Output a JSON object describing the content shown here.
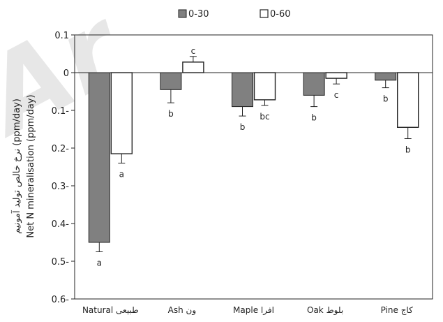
{
  "chart_data": {
    "type": "bar",
    "categories": [
      "Natural طبیعی",
      "Ash ون",
      "Maple افرا",
      "Oak بلوط",
      "Pine کاج"
    ],
    "series": [
      {
        "name": "0-30",
        "color": "#808080",
        "values": [
          -0.45,
          -0.045,
          -0.09,
          -0.06,
          -0.02
        ],
        "errors": [
          0.025,
          0.035,
          0.025,
          0.03,
          0.02
        ],
        "letters": [
          "a",
          "b",
          "b",
          "b",
          "b"
        ]
      },
      {
        "name": "0-60",
        "color": "#ffffff",
        "values": [
          -0.215,
          0.028,
          -0.072,
          -0.015,
          -0.145
        ],
        "errors": [
          0.025,
          0.015,
          0.015,
          0.015,
          0.03
        ],
        "letters": [
          "a",
          "c",
          "bc",
          "c",
          "b"
        ]
      }
    ],
    "ylabel_lines": [
      "نرخ خالص تولید آمونیم (ppm/day)",
      "Net N mineralisation (ppm/day)"
    ],
    "yticks": [
      {
        "value": 0.1,
        "label": "0.1"
      },
      {
        "value": 0,
        "label": "0"
      },
      {
        "value": -0.1,
        "label": "0.1-"
      },
      {
        "value": -0.2,
        "label": "0.2-"
      },
      {
        "value": -0.3,
        "label": "0.3-"
      },
      {
        "value": -0.4,
        "label": "0.4-"
      },
      {
        "value": -0.5,
        "label": "0.5-"
      },
      {
        "value": -0.6,
        "label": "0.6-"
      }
    ],
    "ylim": [
      -0.6,
      0.1
    ],
    "legend_position": "top-center",
    "grid": false
  },
  "watermark_text": "Ar"
}
